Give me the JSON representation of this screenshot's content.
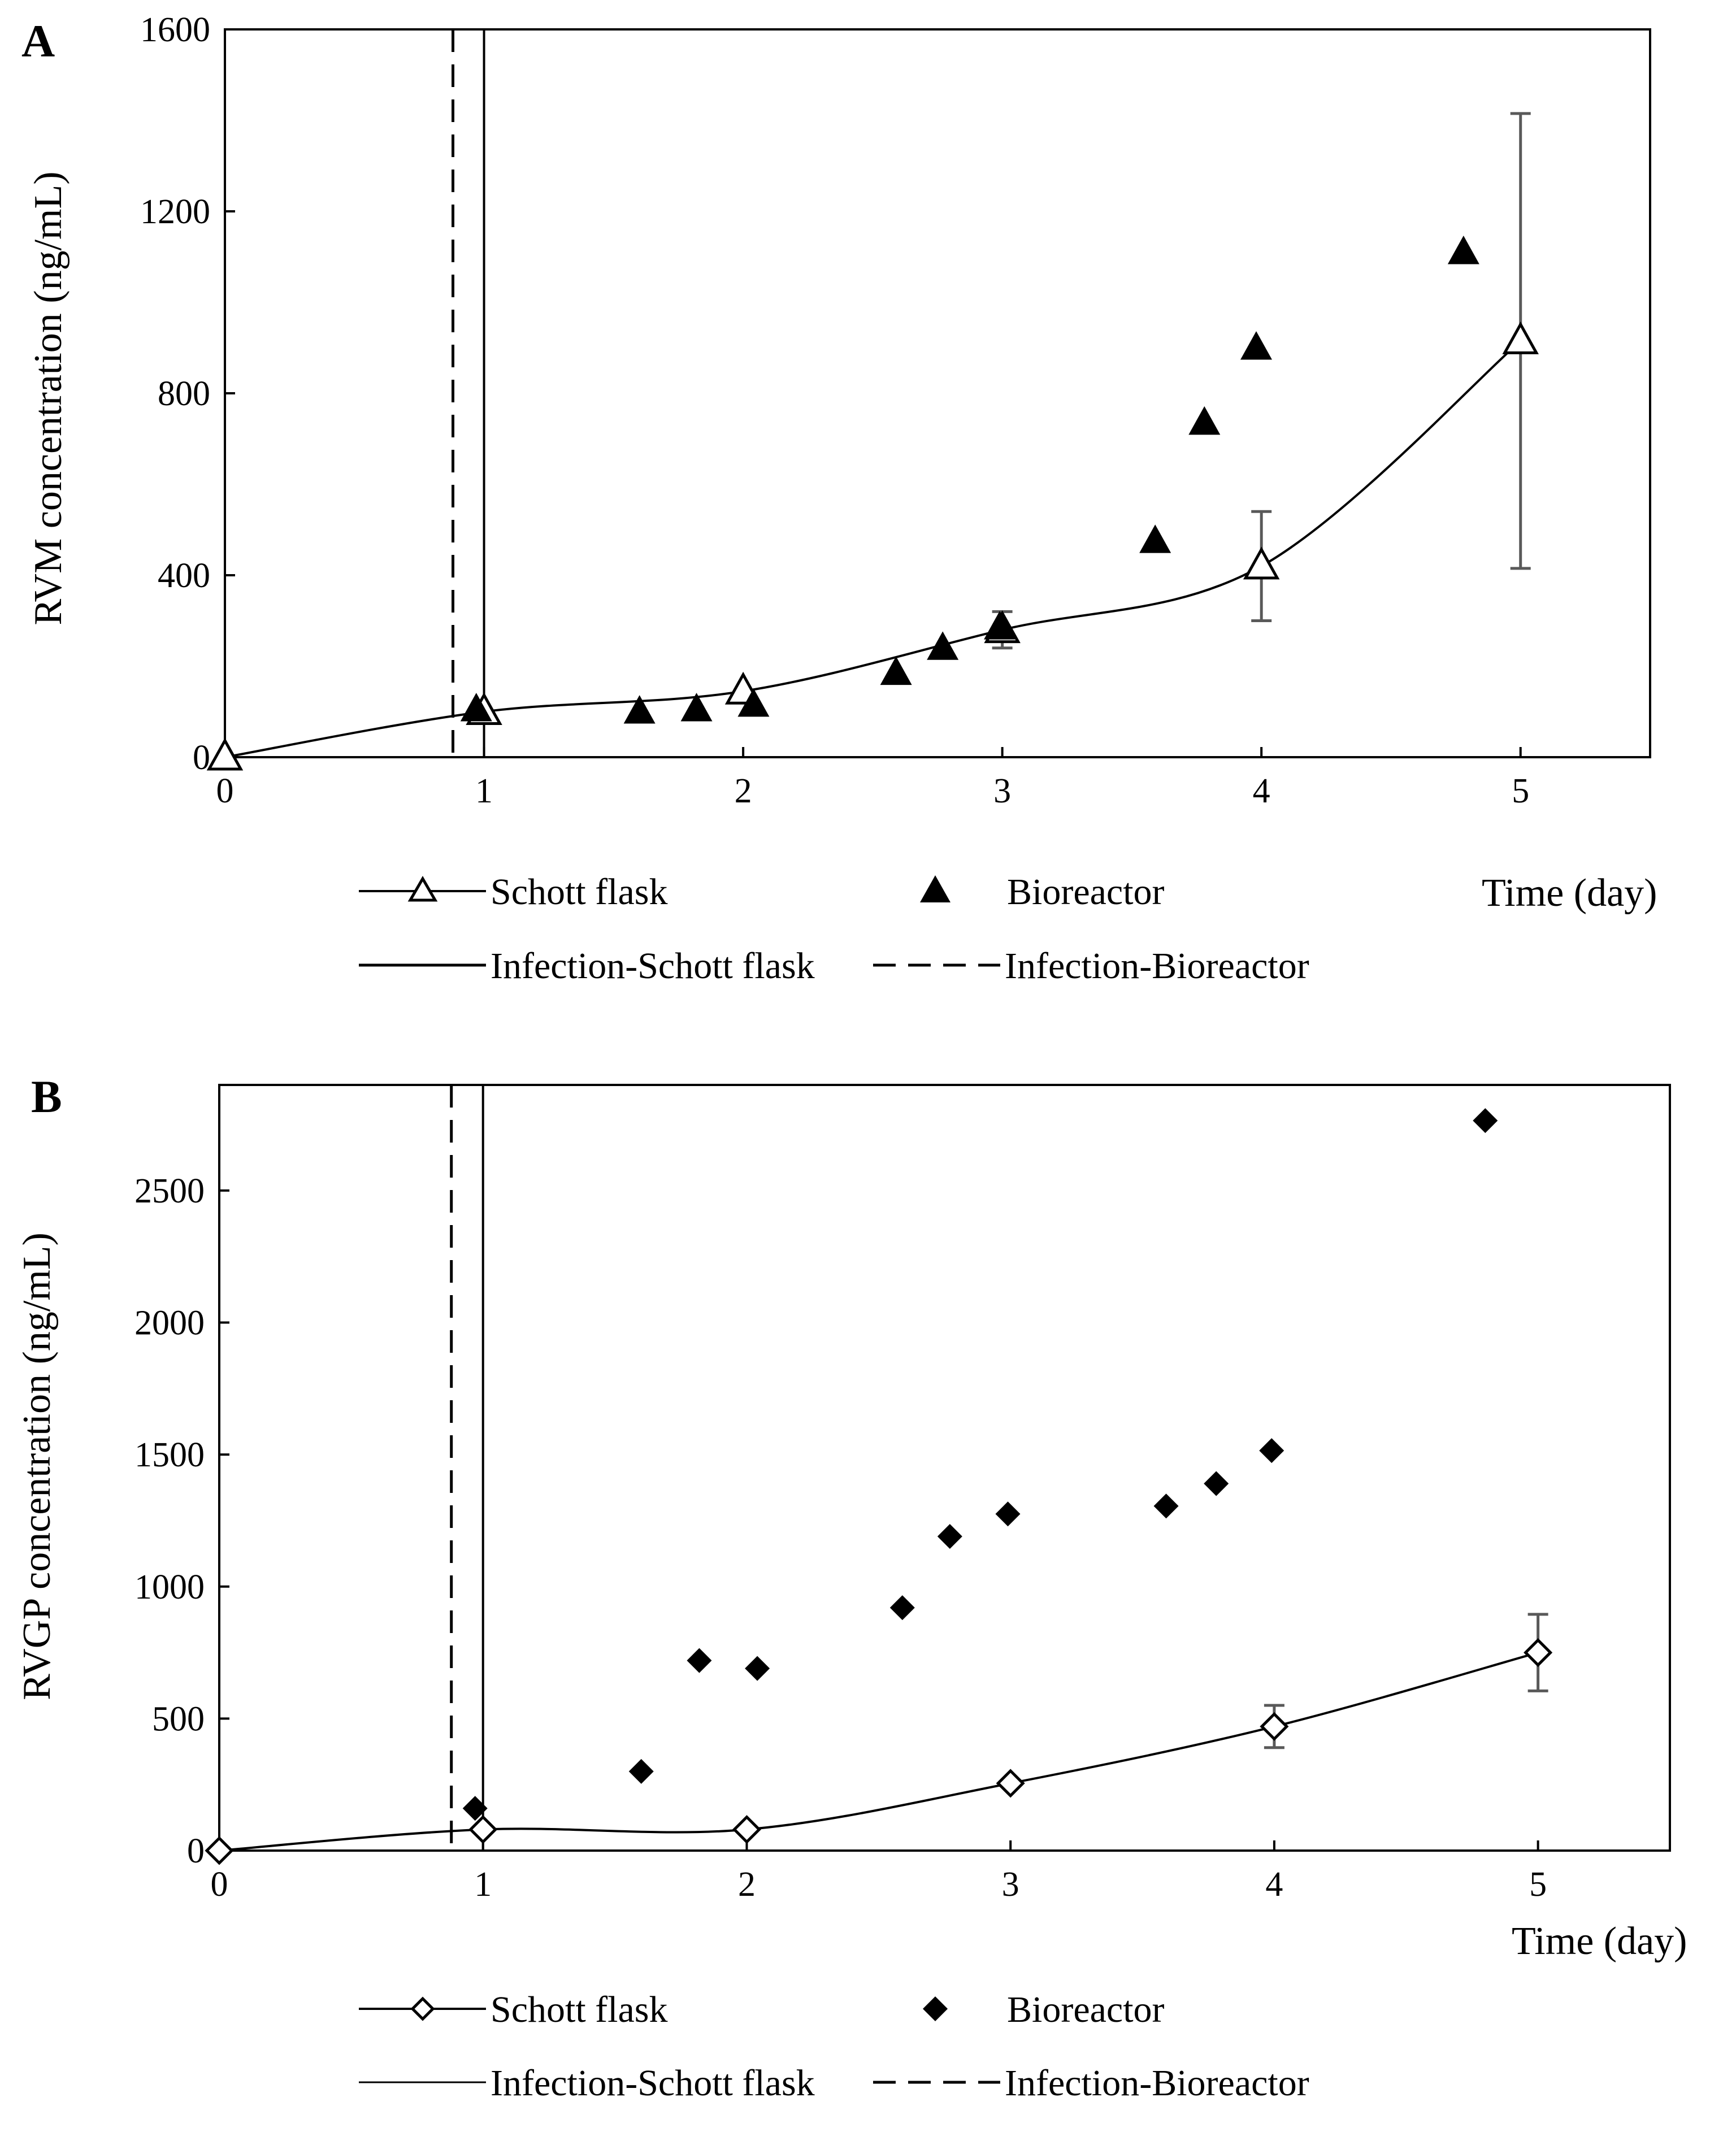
{
  "colors": {
    "ink": "#000000",
    "errorbar": "#595959",
    "background": "#ffffff"
  },
  "chart_data": [
    {
      "panel": "A",
      "type": "scatter",
      "xlabel": "Time (day)",
      "ylabel": "RVM concentration (ng/mL)",
      "xlim": [
        0,
        5.5
      ],
      "ylim": [
        0,
        1600
      ],
      "xticks": [
        0,
        1,
        2,
        3,
        4,
        5
      ],
      "yticks": [
        0,
        400,
        800,
        1200,
        1600
      ],
      "grid": false,
      "legend_position": "bottom",
      "series": [
        {
          "name": "Schott flask",
          "kind": "smooth-line-markers",
          "marker": "triangle-open",
          "x": [
            0,
            1,
            2,
            3,
            4,
            5
          ],
          "y": [
            0,
            100,
            145,
            280,
            420,
            915
          ],
          "err": [
            0,
            0,
            0,
            40,
            120,
            500
          ]
        },
        {
          "name": "Bioreactor",
          "kind": "markers",
          "marker": "triangle-filled",
          "x": [
            0.97,
            1.6,
            1.82,
            2.04,
            2.59,
            2.77,
            2.99,
            3.59,
            3.78,
            3.98,
            4.78
          ],
          "y": [
            105,
            100,
            105,
            115,
            185,
            240,
            285,
            475,
            735,
            900,
            1110
          ]
        }
      ],
      "reference_lines": [
        {
          "name": "Infection-Schott flask",
          "x": 1.0,
          "style": "solid"
        },
        {
          "name": "Infection-Bioreactor",
          "x": 0.88,
          "style": "dashed"
        }
      ]
    },
    {
      "panel": "B",
      "type": "scatter",
      "xlabel": "Time (day)",
      "ylabel": "RVGP concentration (ng/mL)",
      "xlim": [
        0,
        5.5
      ],
      "ylim": [
        0,
        2900
      ],
      "xticks": [
        0,
        1,
        2,
        3,
        4,
        5
      ],
      "yticks": [
        0,
        500,
        1000,
        1500,
        2000,
        2500
      ],
      "grid": false,
      "legend_position": "bottom",
      "series": [
        {
          "name": "Schott flask",
          "kind": "smooth-line-markers",
          "marker": "diamond-open",
          "x": [
            0,
            1,
            2,
            3,
            4,
            5
          ],
          "y": [
            0,
            80,
            80,
            255,
            470,
            750
          ],
          "err": [
            0,
            0,
            0,
            0,
            80,
            145
          ]
        },
        {
          "name": "Bioreactor",
          "kind": "markers",
          "marker": "diamond-filled",
          "x": [
            0.97,
            1.6,
            1.82,
            2.04,
            2.59,
            2.77,
            2.99,
            3.59,
            3.78,
            3.99,
            4.8
          ],
          "y": [
            160,
            300,
            720,
            690,
            920,
            1190,
            1275,
            1305,
            1390,
            1515,
            2765
          ]
        }
      ],
      "reference_lines": [
        {
          "name": "Infection-Schott flask",
          "x": 1.0,
          "style": "solid"
        },
        {
          "name": "Infection-Bioreactor",
          "x": 0.88,
          "style": "dashed"
        }
      ]
    }
  ]
}
